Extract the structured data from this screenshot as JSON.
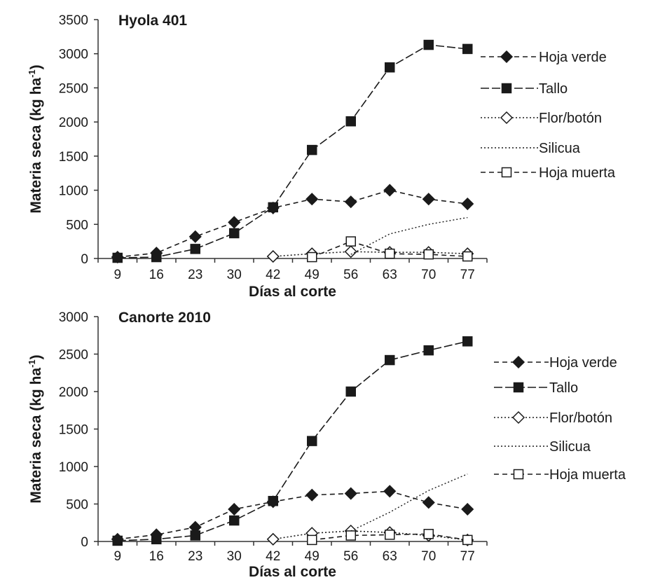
{
  "chart_data": [
    {
      "type": "line",
      "title": "Hyola 401",
      "xlabel": "Días al corte",
      "ylabel": "Materia seca (kg ha",
      "ylabel_sup": "-1",
      "ylabel_close": ")",
      "categories": [
        "9",
        "16",
        "23",
        "30",
        "42",
        "49",
        "56",
        "63",
        "70",
        "77"
      ],
      "ylim": [
        0,
        3500
      ],
      "yticks": [
        "0",
        "500",
        "1000",
        "1500",
        "2000",
        "2500",
        "3000",
        "3500"
      ],
      "legend_position": "right",
      "series": [
        {
          "name": "Hoja verde",
          "marker": "diamond-filled",
          "line": "dashed",
          "values": [
            20,
            80,
            320,
            530,
            740,
            870,
            830,
            1000,
            870,
            800
          ]
        },
        {
          "name": "Tallo",
          "marker": "square-filled",
          "line": "longdash",
          "values": [
            10,
            20,
            140,
            370,
            750,
            1590,
            2010,
            2800,
            3130,
            3070
          ]
        },
        {
          "name": "Flor/botón",
          "marker": "diamond-open",
          "line": "dotted",
          "values": [
            null,
            null,
            null,
            null,
            30,
            70,
            100,
            90,
            90,
            70
          ]
        },
        {
          "name": "Silicua",
          "marker": "none",
          "line": "dotted",
          "values": [
            null,
            null,
            null,
            null,
            null,
            null,
            60,
            360,
            500,
            600
          ]
        },
        {
          "name": "Hoja muerta",
          "marker": "square-open",
          "line": "dashed",
          "values": [
            null,
            null,
            null,
            null,
            null,
            20,
            250,
            70,
            60,
            30
          ]
        }
      ]
    },
    {
      "type": "line",
      "title": "Canorte 2010",
      "xlabel": "Días al corte",
      "ylabel": "Materia seca (kg ha",
      "ylabel_sup": "-1",
      "ylabel_close": ")",
      "categories": [
        "9",
        "16",
        "23",
        "30",
        "42",
        "49",
        "56",
        "63",
        "70",
        "77"
      ],
      "ylim": [
        0,
        3000
      ],
      "yticks": [
        "0",
        "500",
        "1000",
        "1500",
        "2000",
        "2500",
        "3000"
      ],
      "legend_position": "right",
      "series": [
        {
          "name": "Hoja verde",
          "marker": "diamond-filled",
          "line": "dashed",
          "values": [
            30,
            90,
            190,
            430,
            530,
            620,
            640,
            670,
            520,
            430
          ]
        },
        {
          "name": "Tallo",
          "marker": "square-filled",
          "line": "longdash",
          "values": [
            10,
            30,
            80,
            280,
            540,
            1340,
            2000,
            2420,
            2550,
            2670
          ]
        },
        {
          "name": "Flor/botón",
          "marker": "diamond-open",
          "line": "dotted",
          "values": [
            null,
            null,
            null,
            null,
            30,
            110,
            140,
            120,
            80,
            20
          ]
        },
        {
          "name": "Silicua",
          "marker": "none",
          "line": "dotted",
          "values": [
            null,
            null,
            null,
            null,
            null,
            null,
            140,
            390,
            680,
            900
          ]
        },
        {
          "name": "Hoja muerta",
          "marker": "square-open",
          "line": "dashed",
          "values": [
            null,
            null,
            null,
            null,
            null,
            20,
            80,
            90,
            100,
            20
          ]
        }
      ]
    }
  ]
}
